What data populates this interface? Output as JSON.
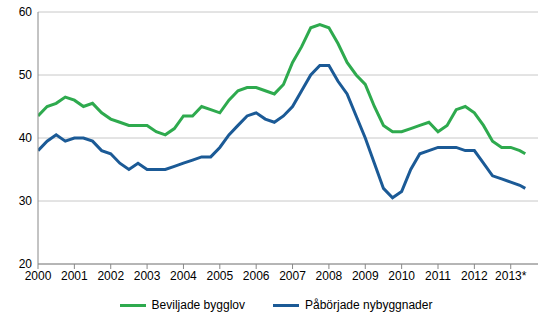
{
  "chart_data": {
    "type": "line",
    "legend": "bottom",
    "grid": true,
    "x": [
      2000,
      2000.25,
      2000.5,
      2000.75,
      2001,
      2001.25,
      2001.5,
      2001.75,
      2002,
      2002.25,
      2002.5,
      2002.75,
      2003,
      2003.25,
      2003.5,
      2003.75,
      2004,
      2004.25,
      2004.5,
      2004.75,
      2005,
      2005.25,
      2005.5,
      2005.75,
      2006,
      2006.25,
      2006.5,
      2006.75,
      2007,
      2007.25,
      2007.5,
      2007.75,
      2008,
      2008.25,
      2008.5,
      2008.75,
      2009,
      2009.25,
      2009.5,
      2009.75,
      2010,
      2010.25,
      2010.5,
      2010.75,
      2011,
      2011.25,
      2011.5,
      2011.75,
      2012,
      2012.25,
      2012.5,
      2012.75,
      2013,
      2013.25,
      2013.4
    ],
    "series": [
      {
        "name": "Beviljade bygglov",
        "color": "#2eaa4e",
        "values": [
          43.5,
          45,
          45.5,
          46.5,
          46,
          45,
          45.5,
          44,
          43,
          42.5,
          42,
          42,
          42,
          41,
          40.5,
          41.5,
          43.5,
          43.5,
          45,
          44.5,
          44,
          46,
          47.5,
          48,
          48,
          47.5,
          47,
          48.5,
          52,
          54.5,
          57.5,
          58,
          57.5,
          55,
          52,
          50,
          48.5,
          45,
          42,
          41,
          41,
          41.5,
          42,
          42.5,
          41,
          42,
          44.5,
          45,
          44,
          42,
          39.5,
          38.5,
          38.5,
          38,
          37.5
        ]
      },
      {
        "name": "Påbörjade nybyggnader",
        "color": "#1b5a96",
        "values": [
          38,
          39.5,
          40.5,
          39.5,
          40,
          40,
          39.5,
          38,
          37.5,
          36,
          35,
          36,
          35,
          35,
          35,
          35.5,
          36,
          36.5,
          37,
          37,
          38.5,
          40.5,
          42,
          43.5,
          44,
          43,
          42.5,
          43.5,
          45,
          47.5,
          50,
          51.5,
          51.5,
          49,
          47,
          43.5,
          40,
          36,
          32,
          30.5,
          31.5,
          35,
          37.5,
          38,
          38.5,
          38.5,
          38.5,
          38,
          38,
          36,
          34,
          33.5,
          33,
          32.5,
          32
        ]
      }
    ],
    "xlim": [
      2000,
      2013.75
    ],
    "xticks": [
      2000,
      2001,
      2002,
      2003,
      2004,
      2005,
      2006,
      2007,
      2008,
      2009,
      2010,
      2011,
      2012,
      {
        "value": 2013,
        "label": "2013*"
      }
    ],
    "ylim": [
      20,
      60
    ],
    "yticks": [
      20,
      30,
      40,
      50,
      60
    ]
  }
}
